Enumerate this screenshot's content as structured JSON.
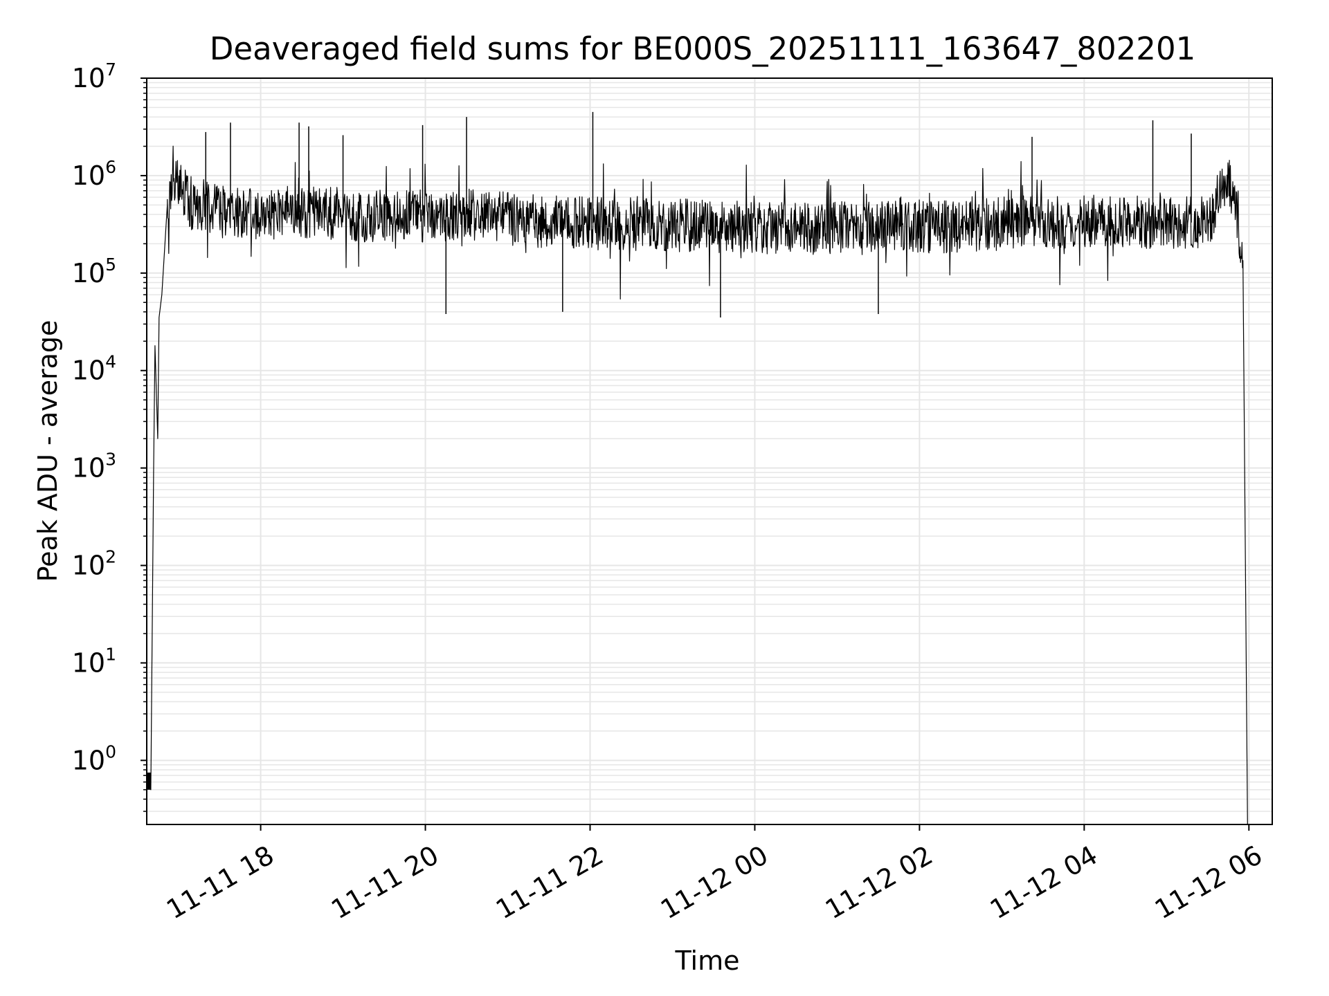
{
  "chart_data": {
    "type": "line",
    "title": "Deaveraged field sums for BE000S_20251111_163647_802201",
    "xlabel": "Time",
    "ylabel": "Peak ADU - average",
    "yscale": "log",
    "ylim": [
      0.22,
      10000000
    ],
    "xlim": [
      "2025-11-11 16:37",
      "2025-11-12 06:17"
    ],
    "grid": true,
    "line_color": "#000000",
    "grid_color": "#e6e6e6",
    "y_ticks": [
      {
        "base": "10",
        "exp": "0",
        "value": 1
      },
      {
        "base": "10",
        "exp": "1",
        "value": 10
      },
      {
        "base": "10",
        "exp": "2",
        "value": 100
      },
      {
        "base": "10",
        "exp": "3",
        "value": 1000
      },
      {
        "base": "10",
        "exp": "4",
        "value": 10000
      },
      {
        "base": "10",
        "exp": "5",
        "value": 100000
      },
      {
        "base": "10",
        "exp": "6",
        "value": 1000000
      },
      {
        "base": "10",
        "exp": "7",
        "value": 10000000
      }
    ],
    "x_ticks": [
      {
        "label": "11-11 18",
        "time": "2025-11-11 18:00"
      },
      {
        "label": "11-11 20",
        "time": "2025-11-11 20:00"
      },
      {
        "label": "11-11 22",
        "time": "2025-11-11 22:00"
      },
      {
        "label": "11-12 00",
        "time": "2025-11-12 00:00"
      },
      {
        "label": "11-12 02",
        "time": "2025-11-12 02:00"
      },
      {
        "label": "11-12 04",
        "time": "2025-11-12 04:00"
      },
      {
        "label": "11-12 06",
        "time": "2025-11-12 06:00"
      }
    ],
    "series": [
      {
        "values": [
          {
            "x": "2025-11-11 16:37",
            "y": 0.7
          },
          {
            "x": "2025-11-11 16:40",
            "y": 0.5
          },
          {
            "x": "2025-11-11 16:42",
            "y": 900
          },
          {
            "x": "2025-11-11 16:43",
            "y": 18000
          },
          {
            "x": "2025-11-11 16:45",
            "y": 2000
          },
          {
            "x": "2025-11-11 16:46",
            "y": 35000
          },
          {
            "x": "2025-11-11 16:48",
            "y": 60000
          },
          {
            "x": "2025-11-11 16:52",
            "y": 500000
          },
          {
            "x": "2025-11-11 16:56",
            "y": 1100000
          },
          {
            "x": "2025-11-11 17:10",
            "y": 500000
          },
          {
            "x": "2025-11-11 17:40",
            "y": 400000
          },
          {
            "x": "2025-11-11 18:30",
            "y": 420000
          },
          {
            "x": "2025-11-11 19:30",
            "y": 380000
          },
          {
            "x": "2025-11-11 20:30",
            "y": 400000
          },
          {
            "x": "2025-11-11 21:30",
            "y": 330000
          },
          {
            "x": "2025-11-11 22:30",
            "y": 320000
          },
          {
            "x": "2025-11-11 23:30",
            "y": 300000
          },
          {
            "x": "2025-11-12 00:30",
            "y": 290000
          },
          {
            "x": "2025-11-12 01:30",
            "y": 290000
          },
          {
            "x": "2025-11-12 02:30",
            "y": 300000
          },
          {
            "x": "2025-11-12 03:30",
            "y": 350000
          },
          {
            "x": "2025-11-12 04:30",
            "y": 330000
          },
          {
            "x": "2025-11-12 05:30",
            "y": 330000
          },
          {
            "x": "2025-11-12 05:45",
            "y": 900000
          },
          {
            "x": "2025-11-12 05:52",
            "y": 400000
          },
          {
            "x": "2025-11-12 05:56",
            "y": 100000
          },
          {
            "x": "2025-11-12 05:59",
            "y": 0.22
          }
        ]
      }
    ],
    "spikes": [
      {
        "x": "2025-11-11 17:20",
        "y": 2800000
      },
      {
        "x": "2025-11-11 17:38",
        "y": 3500000
      },
      {
        "x": "2025-11-11 18:28",
        "y": 3500000
      },
      {
        "x": "2025-11-11 18:35",
        "y": 3200000
      },
      {
        "x": "2025-11-11 19:00",
        "y": 2600000
      },
      {
        "x": "2025-11-11 19:58",
        "y": 3300000
      },
      {
        "x": "2025-11-11 20:30",
        "y": 4000000
      },
      {
        "x": "2025-11-11 22:02",
        "y": 4500000
      },
      {
        "x": "2025-11-12 03:22",
        "y": 2500000
      },
      {
        "x": "2025-11-12 04:50",
        "y": 3700000
      },
      {
        "x": "2025-11-12 05:18",
        "y": 2700000
      }
    ],
    "dips": [
      {
        "x": "2025-11-11 20:15",
        "y": 38000
      },
      {
        "x": "2025-11-11 21:40",
        "y": 40000
      },
      {
        "x": "2025-11-11 23:35",
        "y": 35000
      },
      {
        "x": "2025-11-12 01:30",
        "y": 38000
      }
    ]
  }
}
